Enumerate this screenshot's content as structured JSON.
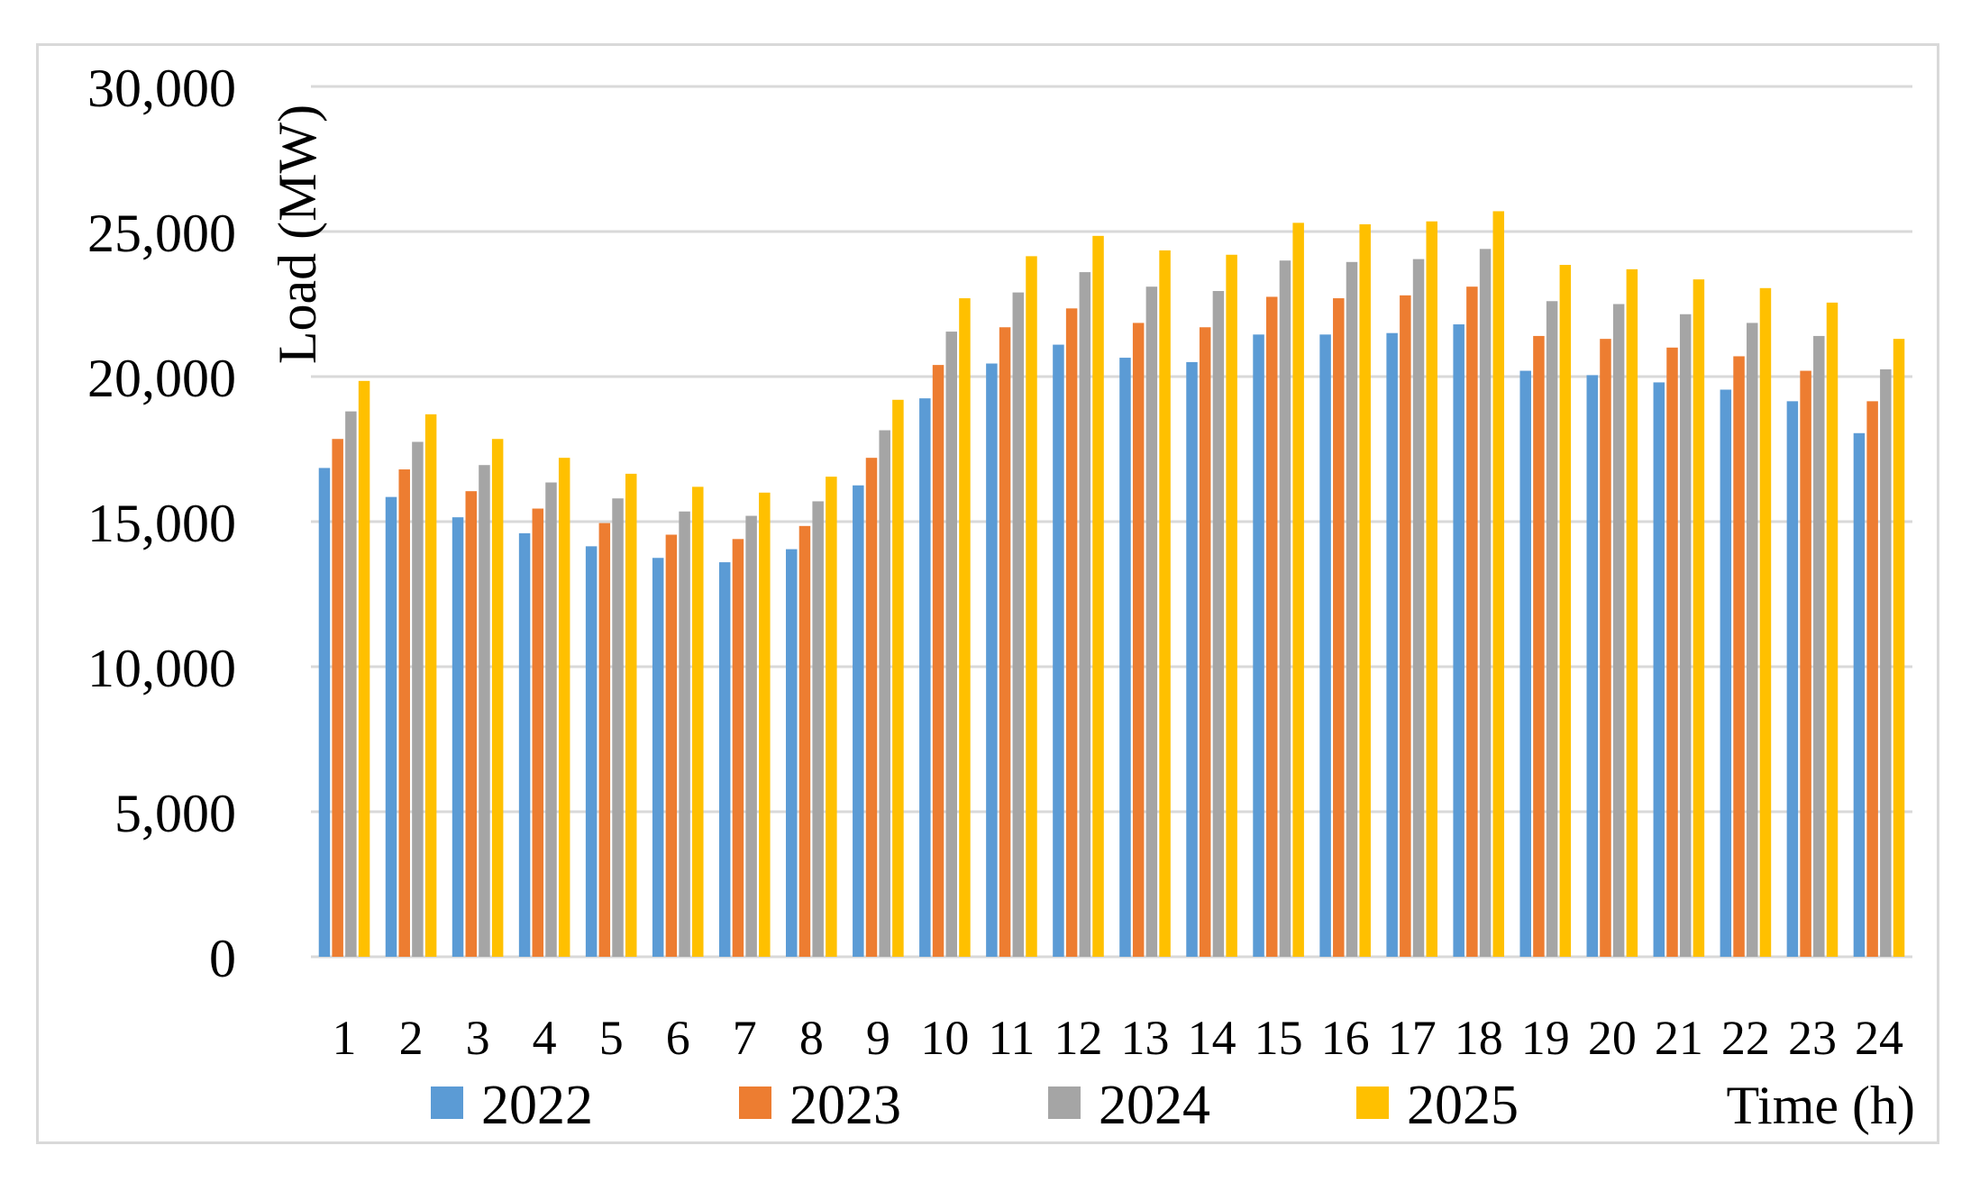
{
  "chart_data": {
    "type": "bar",
    "xlabel": "Time (h)",
    "ylabel": "Load (MW)",
    "ylim": [
      0,
      30000
    ],
    "yticks": [
      {
        "value": 0,
        "label": "0"
      },
      {
        "value": 5000,
        "label": "5,000"
      },
      {
        "value": 10000,
        "label": "10,000"
      },
      {
        "value": 15000,
        "label": "15,000"
      },
      {
        "value": 20000,
        "label": "20,000"
      },
      {
        "value": 25000,
        "label": "25,000"
      },
      {
        "value": 30000,
        "label": "30,000"
      }
    ],
    "grid": true,
    "legend_position": "bottom",
    "categories": [
      "1",
      "2",
      "3",
      "4",
      "5",
      "6",
      "7",
      "8",
      "9",
      "10",
      "11",
      "12",
      "13",
      "14",
      "15",
      "16",
      "17",
      "18",
      "19",
      "20",
      "21",
      "22",
      "23",
      "24"
    ],
    "series": [
      {
        "name": "2022",
        "color": "#5b9bd5",
        "values": [
          16850,
          15850,
          15150,
          14600,
          14150,
          13750,
          13600,
          14050,
          16250,
          19250,
          20450,
          21100,
          20650,
          20500,
          21450,
          21450,
          21500,
          21800,
          20200,
          20050,
          19800,
          19550,
          19150,
          18050
        ]
      },
      {
        "name": "2023",
        "color": "#ed7d31",
        "values": [
          17850,
          16800,
          16050,
          15450,
          14950,
          14550,
          14400,
          14850,
          17200,
          20400,
          21700,
          22350,
          21850,
          21700,
          22750,
          22700,
          22800,
          23100,
          21400,
          21300,
          21000,
          20700,
          20200,
          19150
        ]
      },
      {
        "name": "2024",
        "color": "#a5a5a5",
        "values": [
          18800,
          17750,
          16950,
          16350,
          15800,
          15350,
          15200,
          15700,
          18150,
          21550,
          22900,
          23600,
          23100,
          22950,
          24000,
          23950,
          24050,
          24400,
          22600,
          22500,
          22150,
          21850,
          21400,
          20250
        ]
      },
      {
        "name": "2025",
        "color": "#ffc000",
        "values": [
          19850,
          18700,
          17850,
          17200,
          16650,
          16200,
          16000,
          16550,
          19200,
          22700,
          24150,
          24850,
          24350,
          24200,
          25300,
          25250,
          25350,
          25700,
          23850,
          23700,
          23350,
          23050,
          22550,
          21300
        ]
      }
    ]
  }
}
